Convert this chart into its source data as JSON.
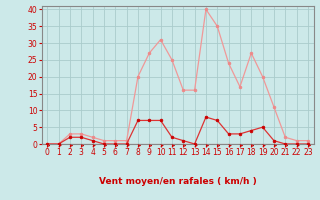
{
  "x": [
    0,
    1,
    2,
    3,
    4,
    5,
    6,
    7,
    8,
    9,
    10,
    11,
    12,
    13,
    14,
    15,
    16,
    17,
    18,
    19,
    20,
    21,
    22,
    23
  ],
  "y_mean": [
    0,
    0,
    2,
    2,
    1,
    0,
    0,
    0,
    7,
    7,
    7,
    2,
    1,
    0,
    8,
    7,
    3,
    3,
    4,
    5,
    1,
    0,
    0,
    0
  ],
  "y_gust": [
    0,
    0,
    3,
    3,
    2,
    1,
    1,
    1,
    20,
    27,
    31,
    25,
    16,
    16,
    40,
    35,
    24,
    17,
    27,
    20,
    11,
    2,
    1,
    1
  ],
  "bg_color": "#cce9e9",
  "line_mean_color": "#dd3333",
  "line_gust_color": "#f09898",
  "marker_color_mean": "#cc0000",
  "marker_color_gust": "#ee8888",
  "grid_color": "#aacccc",
  "xlabel": "Vent moyen/en rafales ( km/h )",
  "ylim": [
    0,
    41
  ],
  "yticks": [
    0,
    5,
    10,
    15,
    20,
    25,
    30,
    35,
    40
  ],
  "xticks": [
    0,
    1,
    2,
    3,
    4,
    5,
    6,
    7,
    8,
    9,
    10,
    11,
    12,
    13,
    14,
    15,
    16,
    17,
    18,
    19,
    20,
    21,
    22,
    23
  ],
  "tick_color": "#cc0000",
  "label_color": "#cc0000",
  "arrow_color": "#cc0000",
  "spine_color": "#888888"
}
